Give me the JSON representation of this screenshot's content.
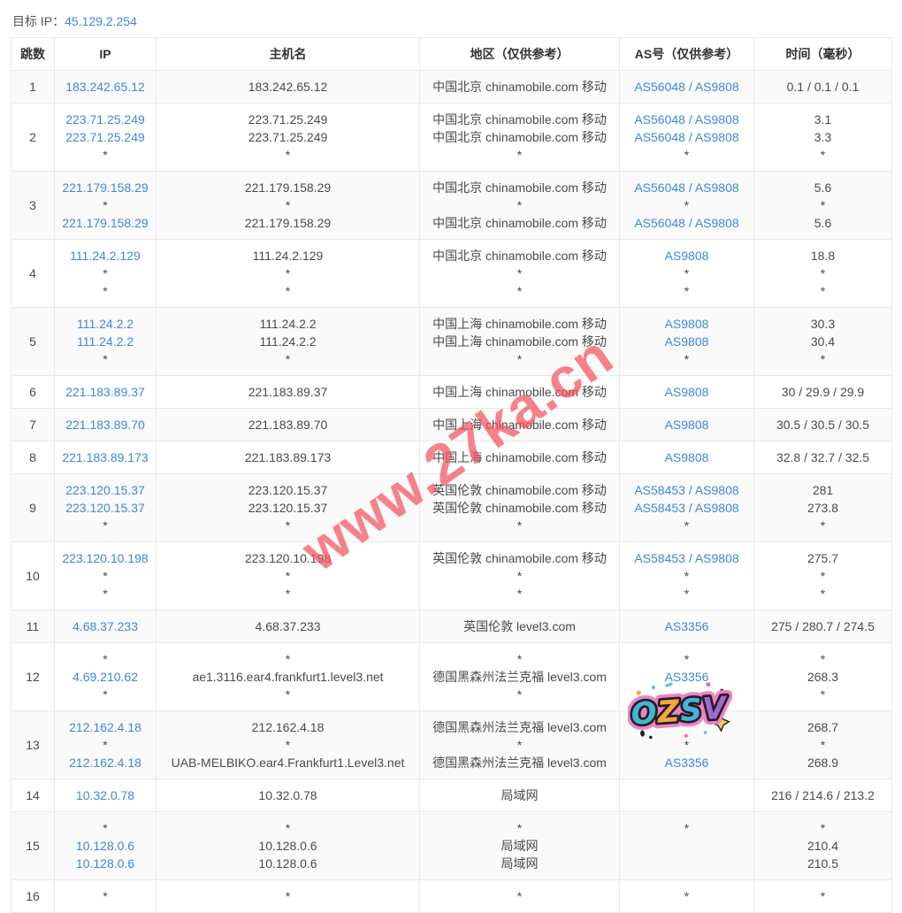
{
  "page": {
    "target_label": "目标 IP：",
    "target_ip": "45.129.2.254"
  },
  "table": {
    "columns": [
      "跳数",
      "IP",
      "主机名",
      "地区（仅供参考）",
      "AS号（仅供参考）",
      "时间（毫秒）"
    ],
    "rows": [
      {
        "hop": "1",
        "ip": [
          {
            "t": "183.242.65.12",
            "link": true
          }
        ],
        "host": [
          {
            "t": "183.242.65.12"
          }
        ],
        "region": [
          {
            "t": "中国北京 chinamobile.com 移动"
          }
        ],
        "as": [
          {
            "t": "AS56048 / AS9808",
            "link": true
          }
        ],
        "time": [
          {
            "t": "0.1 / 0.1 / 0.1"
          }
        ]
      },
      {
        "hop": "2",
        "ip": [
          {
            "t": "223.71.25.249",
            "link": true
          },
          {
            "t": "223.71.25.249",
            "link": true
          },
          {
            "t": "*"
          }
        ],
        "host": [
          {
            "t": "223.71.25.249"
          },
          {
            "t": "223.71.25.249"
          },
          {
            "t": "*"
          }
        ],
        "region": [
          {
            "t": "中国北京 chinamobile.com 移动"
          },
          {
            "t": "中国北京 chinamobile.com 移动"
          },
          {
            "t": "*"
          }
        ],
        "as": [
          {
            "t": "AS56048 / AS9808",
            "link": true
          },
          {
            "t": "AS56048 / AS9808",
            "link": true
          },
          {
            "t": "*"
          }
        ],
        "time": [
          {
            "t": "3.1"
          },
          {
            "t": "3.3"
          },
          {
            "t": "*"
          }
        ]
      },
      {
        "hop": "3",
        "ip": [
          {
            "t": "221.179.158.29",
            "link": true
          },
          {
            "t": "*"
          },
          {
            "t": "221.179.158.29",
            "link": true
          }
        ],
        "host": [
          {
            "t": "221.179.158.29"
          },
          {
            "t": "*"
          },
          {
            "t": "221.179.158.29"
          }
        ],
        "region": [
          {
            "t": "中国北京 chinamobile.com 移动"
          },
          {
            "t": "*"
          },
          {
            "t": "中国北京 chinamobile.com 移动"
          }
        ],
        "as": [
          {
            "t": "AS56048 / AS9808",
            "link": true
          },
          {
            "t": "*"
          },
          {
            "t": "AS56048 / AS9808",
            "link": true
          }
        ],
        "time": [
          {
            "t": "5.6"
          },
          {
            "t": "*"
          },
          {
            "t": "5.6"
          }
        ]
      },
      {
        "hop": "4",
        "ip": [
          {
            "t": "111.24.2.129",
            "link": true
          },
          {
            "t": "*"
          },
          {
            "t": "*"
          }
        ],
        "host": [
          {
            "t": "111.24.2.129"
          },
          {
            "t": "*"
          },
          {
            "t": "*"
          }
        ],
        "region": [
          {
            "t": "中国北京 chinamobile.com 移动"
          },
          {
            "t": "*"
          },
          {
            "t": "*"
          }
        ],
        "as": [
          {
            "t": "AS9808",
            "link": true
          },
          {
            "t": "*"
          },
          {
            "t": "*"
          }
        ],
        "time": [
          {
            "t": "18.8"
          },
          {
            "t": "*"
          },
          {
            "t": "*"
          }
        ]
      },
      {
        "hop": "5",
        "ip": [
          {
            "t": "111.24.2.2",
            "link": true
          },
          {
            "t": "111.24.2.2",
            "link": true
          },
          {
            "t": "*"
          }
        ],
        "host": [
          {
            "t": "111.24.2.2"
          },
          {
            "t": "111.24.2.2"
          },
          {
            "t": "*"
          }
        ],
        "region": [
          {
            "t": "中国上海 chinamobile.com 移动"
          },
          {
            "t": "中国上海 chinamobile.com 移动"
          },
          {
            "t": "*"
          }
        ],
        "as": [
          {
            "t": "AS9808",
            "link": true
          },
          {
            "t": "AS9808",
            "link": true
          },
          {
            "t": "*"
          }
        ],
        "time": [
          {
            "t": "30.3"
          },
          {
            "t": "30.4"
          },
          {
            "t": "*"
          }
        ]
      },
      {
        "hop": "6",
        "ip": [
          {
            "t": "221.183.89.37",
            "link": true
          }
        ],
        "host": [
          {
            "t": "221.183.89.37"
          }
        ],
        "region": [
          {
            "t": "中国上海 chinamobile.com 移动"
          }
        ],
        "as": [
          {
            "t": "AS9808",
            "link": true
          }
        ],
        "time": [
          {
            "t": "30 / 29.9 / 29.9"
          }
        ]
      },
      {
        "hop": "7",
        "ip": [
          {
            "t": "221.183.89.70",
            "link": true
          }
        ],
        "host": [
          {
            "t": "221.183.89.70"
          }
        ],
        "region": [
          {
            "t": "中国上海 chinamobile.com 移动"
          }
        ],
        "as": [
          {
            "t": "AS9808",
            "link": true
          }
        ],
        "time": [
          {
            "t": "30.5 / 30.5 / 30.5"
          }
        ]
      },
      {
        "hop": "8",
        "ip": [
          {
            "t": "221.183.89.173",
            "link": true
          }
        ],
        "host": [
          {
            "t": "221.183.89.173"
          }
        ],
        "region": [
          {
            "t": "中国上海 chinamobile.com 移动"
          }
        ],
        "as": [
          {
            "t": "AS9808",
            "link": true
          }
        ],
        "time": [
          {
            "t": "32.8 / 32.7 / 32.5"
          }
        ]
      },
      {
        "hop": "9",
        "ip": [
          {
            "t": "223.120.15.37",
            "link": true
          },
          {
            "t": "223.120.15.37",
            "link": true
          },
          {
            "t": "*"
          }
        ],
        "host": [
          {
            "t": "223.120.15.37"
          },
          {
            "t": "223.120.15.37"
          },
          {
            "t": "*"
          }
        ],
        "region": [
          {
            "t": "英国伦敦 chinamobile.com 移动"
          },
          {
            "t": "英国伦敦 chinamobile.com 移动"
          },
          {
            "t": "*"
          }
        ],
        "as": [
          {
            "t": "AS58453 / AS9808",
            "link": true
          },
          {
            "t": "AS58453 / AS9808",
            "link": true
          },
          {
            "t": "*"
          }
        ],
        "time": [
          {
            "t": "281"
          },
          {
            "t": "273.8"
          },
          {
            "t": "*"
          }
        ]
      },
      {
        "hop": "10",
        "ip": [
          {
            "t": "223.120.10.198",
            "link": true
          },
          {
            "t": "*"
          },
          {
            "t": "*"
          }
        ],
        "host": [
          {
            "t": "223.120.10.198"
          },
          {
            "t": "*"
          },
          {
            "t": "*"
          }
        ],
        "region": [
          {
            "t": "英国伦敦 chinamobile.com 移动"
          },
          {
            "t": "*"
          },
          {
            "t": "*"
          }
        ],
        "as": [
          {
            "t": "AS58453 / AS9808",
            "link": true
          },
          {
            "t": "*"
          },
          {
            "t": "*"
          }
        ],
        "time": [
          {
            "t": "275.7"
          },
          {
            "t": "*"
          },
          {
            "t": "*"
          }
        ]
      },
      {
        "hop": "11",
        "ip": [
          {
            "t": "4.68.37.233",
            "link": true
          }
        ],
        "host": [
          {
            "t": "4.68.37.233"
          }
        ],
        "region": [
          {
            "t": "英国伦敦 level3.com"
          }
        ],
        "as": [
          {
            "t": "AS3356",
            "link": true
          }
        ],
        "time": [
          {
            "t": "275 / 280.7 / 274.5"
          }
        ]
      },
      {
        "hop": "12",
        "ip": [
          {
            "t": "*"
          },
          {
            "t": "4.69.210.62",
            "link": true
          },
          {
            "t": "*"
          }
        ],
        "host": [
          {
            "t": "*"
          },
          {
            "t": "ae1.3116.ear4.frankfurt1.level3.net"
          },
          {
            "t": "*"
          }
        ],
        "region": [
          {
            "t": "*"
          },
          {
            "t": "德国黑森州法兰克福 level3.com"
          },
          {
            "t": "*"
          }
        ],
        "as": [
          {
            "t": "*"
          },
          {
            "t": "AS3356",
            "link": true
          },
          {
            "t": ""
          }
        ],
        "time": [
          {
            "t": "*"
          },
          {
            "t": "268.3"
          },
          {
            "t": "*"
          }
        ]
      },
      {
        "hop": "13",
        "ip": [
          {
            "t": "212.162.4.18",
            "link": true
          },
          {
            "t": "*"
          },
          {
            "t": "212.162.4.18",
            "link": true
          }
        ],
        "host": [
          {
            "t": "212.162.4.18"
          },
          {
            "t": "*"
          },
          {
            "t": "UAB-MELBIKO.ear4.Frankfurt1.Level3.net"
          }
        ],
        "region": [
          {
            "t": "德国黑森州法兰克福 level3.com"
          },
          {
            "t": "*"
          },
          {
            "t": "德国黑森州法兰克福 level3.com"
          }
        ],
        "as": [
          {
            "t": ""
          },
          {
            "t": "*"
          },
          {
            "t": "AS3356",
            "link": true
          }
        ],
        "time": [
          {
            "t": "268.7"
          },
          {
            "t": "*"
          },
          {
            "t": "268.9"
          }
        ]
      },
      {
        "hop": "14",
        "ip": [
          {
            "t": "10.32.0.78",
            "link": true
          }
        ],
        "host": [
          {
            "t": "10.32.0.78"
          }
        ],
        "region": [
          {
            "t": "局域网"
          }
        ],
        "as": [
          {
            "t": ""
          }
        ],
        "time": [
          {
            "t": "216 / 214.6 / 213.2"
          }
        ]
      },
      {
        "hop": "15",
        "ip": [
          {
            "t": "*"
          },
          {
            "t": "10.128.0.6",
            "link": true
          },
          {
            "t": "10.128.0.6",
            "link": true
          }
        ],
        "host": [
          {
            "t": "*"
          },
          {
            "t": "10.128.0.6"
          },
          {
            "t": "10.128.0.6"
          }
        ],
        "region": [
          {
            "t": "*"
          },
          {
            "t": "局域网"
          },
          {
            "t": "局域网"
          }
        ],
        "as": [
          {
            "t": "*"
          },
          {
            "t": ""
          },
          {
            "t": ""
          }
        ],
        "time": [
          {
            "t": "*"
          },
          {
            "t": "210.4"
          },
          {
            "t": "210.5"
          }
        ]
      },
      {
        "hop": "16",
        "ip": [
          {
            "t": "*"
          }
        ],
        "host": [
          {
            "t": "*"
          }
        ],
        "region": [
          {
            "t": "*"
          }
        ],
        "as": [
          {
            "t": "*"
          }
        ],
        "time": [
          {
            "t": "*"
          }
        ]
      }
    ]
  },
  "watermark": {
    "text": "www.27ka.cn",
    "color": "#f34d5a"
  },
  "sticker": {
    "text": "OZSV",
    "letters": [
      "O",
      "Z",
      "S",
      "V"
    ],
    "letter_colors": [
      "#3fb9cf",
      "#f6a83c",
      "#46b4d9",
      "#a368d0"
    ],
    "outline_color": "#ee85c1"
  }
}
